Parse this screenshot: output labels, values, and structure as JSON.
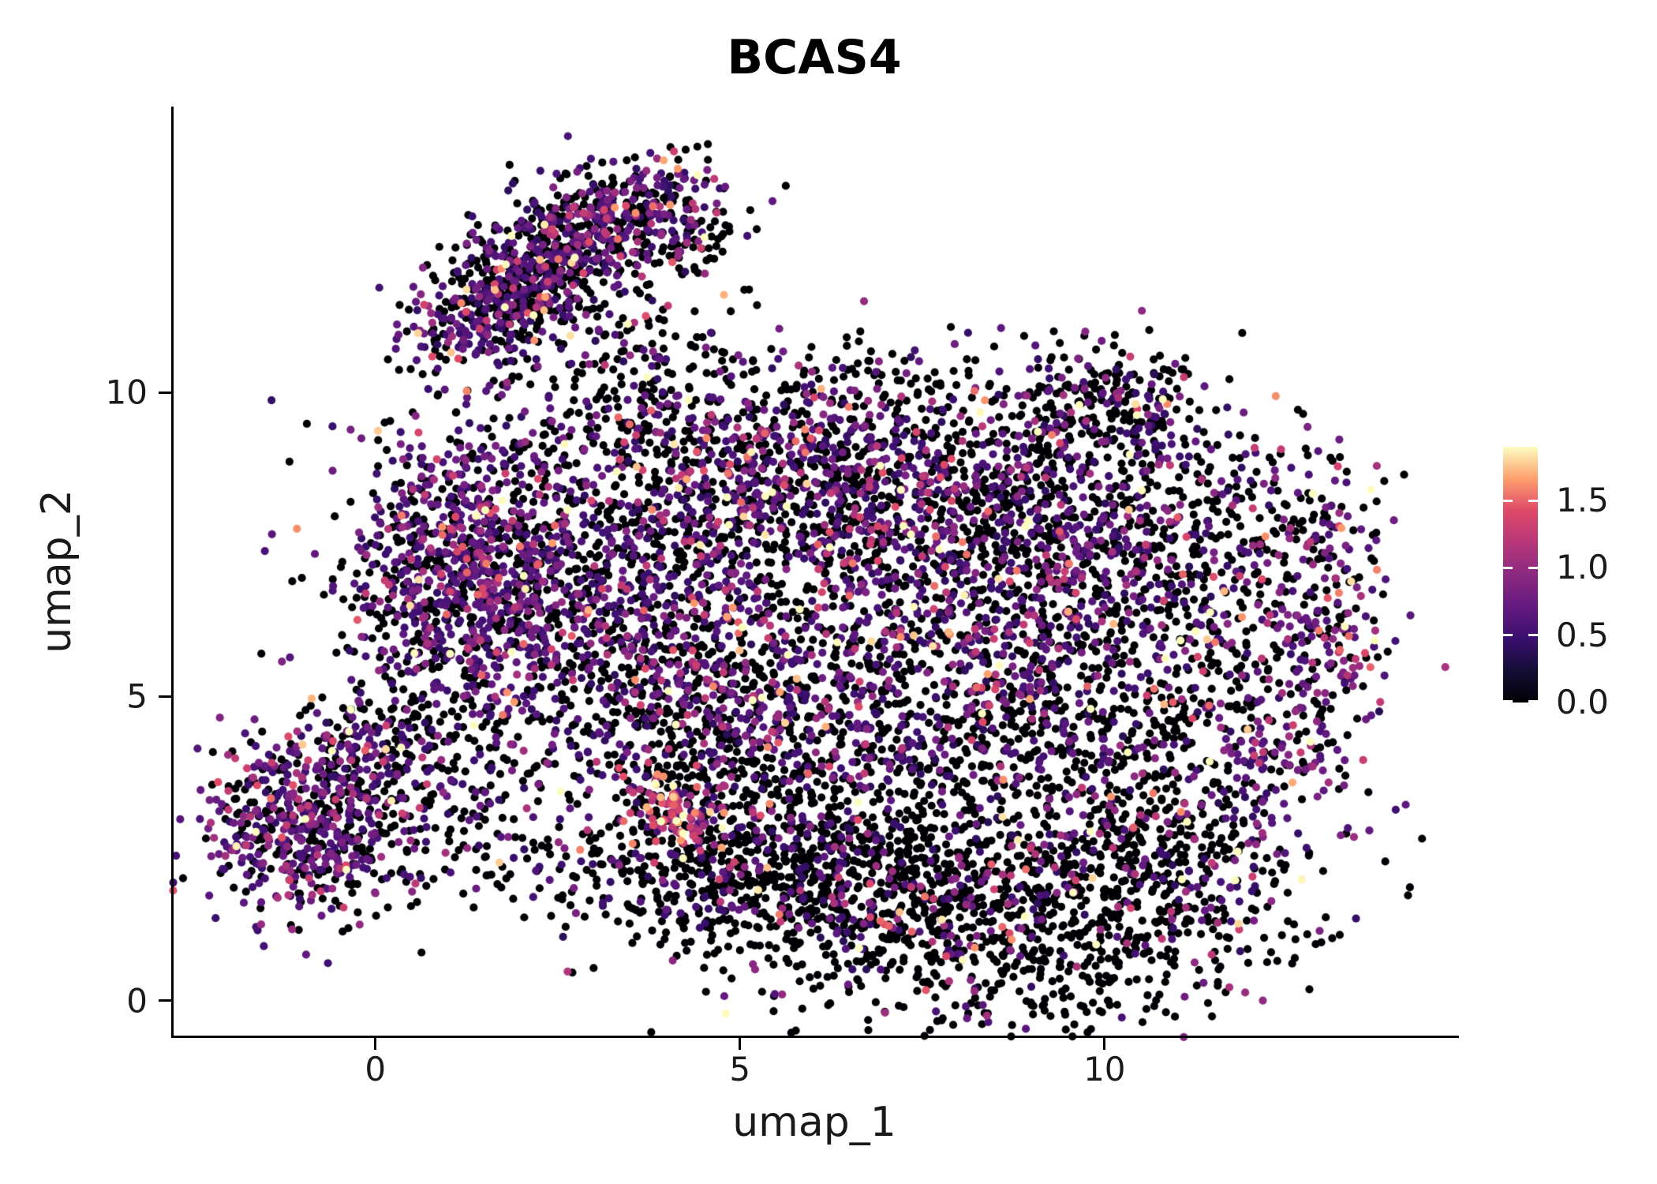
{
  "title": "BCAS4",
  "background": "#FFFFFF",
  "axis_color": "#000000",
  "text_color": "#1a1a1a",
  "chart_data": {
    "type": "scatter",
    "subtype": "umap-feature-plot",
    "title": "BCAS4",
    "xlabel": "umap_1",
    "ylabel": "umap_2",
    "xlim": [
      -2.8,
      14.85
    ],
    "ylim": [
      -0.6,
      14.7
    ],
    "grid": false,
    "x_ticks": [
      {
        "value": 0,
        "label": "0"
      },
      {
        "value": 5,
        "label": "5"
      },
      {
        "value": 10,
        "label": "10"
      }
    ],
    "y_ticks": [
      {
        "value": 0,
        "label": "0"
      },
      {
        "value": 5,
        "label": "5"
      },
      {
        "value": 10,
        "label": "10"
      }
    ],
    "legend": {
      "position": "right",
      "vmin": 0,
      "vmax": 1.9,
      "ticks": [
        {
          "value": 1.5,
          "label": "1.5"
        },
        {
          "value": 1.0,
          "label": "1.0"
        },
        {
          "value": 0.5,
          "label": "0.5"
        },
        {
          "value": 0.0,
          "label": "0.0"
        }
      ]
    },
    "colormap": {
      "name": "magma",
      "stops": [
        [
          0.0,
          "#000004"
        ],
        [
          0.125,
          "#140E36"
        ],
        [
          0.25,
          "#3B0F70"
        ],
        [
          0.375,
          "#641A80"
        ],
        [
          0.5,
          "#8C2981"
        ],
        [
          0.625,
          "#B73779"
        ],
        [
          0.75,
          "#DE4968"
        ],
        [
          0.875,
          "#FE9F6D"
        ],
        [
          1.0,
          "#FCFDBF"
        ]
      ]
    },
    "point_radius": 5.1,
    "seed": 20240611,
    "clusters": [
      {
        "name": "top-lobe-lower",
        "n": 300,
        "cx": 1.55,
        "cy": 11.25,
        "sx": 0.6,
        "sy": 0.45,
        "rot": 35,
        "p0": 0.38,
        "base": 0.4,
        "emean": 0.35
      },
      {
        "name": "top-lobe-upper",
        "n": 430,
        "cx": 3.0,
        "cy": 12.75,
        "sx": 0.8,
        "sy": 0.45,
        "rot": 20,
        "p0": 0.5,
        "base": 0.38,
        "emean": 0.38
      },
      {
        "name": "top-lobe-bridge",
        "n": 220,
        "cx": 2.25,
        "cy": 11.95,
        "sx": 0.5,
        "sy": 0.45,
        "rot": 30,
        "p0": 0.5,
        "base": 0.38,
        "emean": 0.35
      },
      {
        "name": "top-lobe-right-tail",
        "n": 130,
        "cx": 4.0,
        "cy": 12.5,
        "sx": 0.5,
        "sy": 0.55,
        "rot": 0,
        "p0": 0.72,
        "base": 0.35,
        "emean": 0.4
      },
      {
        "name": "neck-sparse",
        "n": 140,
        "cx": 3.6,
        "cy": 10.4,
        "sx": 0.8,
        "sy": 0.75,
        "rot": 0,
        "p0": 0.78,
        "base": 0.35,
        "emean": 0.4
      },
      {
        "name": "main-left-lobe",
        "n": 850,
        "cx": 1.15,
        "cy": 7.0,
        "sx": 0.8,
        "sy": 1.15,
        "rot": 0,
        "p0": 0.42,
        "base": 0.42,
        "emean": 0.33
      },
      {
        "name": "main-top-band",
        "n": 850,
        "cx": 5.3,
        "cy": 8.8,
        "sx": 2.0,
        "sy": 0.75,
        "rot": 0,
        "p0": 0.55,
        "base": 0.38,
        "emean": 0.38
      },
      {
        "name": "main-mid-left",
        "n": 800,
        "cx": 3.4,
        "cy": 6.6,
        "sx": 1.3,
        "sy": 1.15,
        "rot": 0,
        "p0": 0.5,
        "base": 0.4,
        "emean": 0.35
      },
      {
        "name": "main-mid-right",
        "n": 1150,
        "cx": 7.6,
        "cy": 7.6,
        "sx": 1.8,
        "sy": 1.2,
        "rot": 0,
        "p0": 0.52,
        "base": 0.38,
        "emean": 0.38
      },
      {
        "name": "main-right-lobe",
        "n": 620,
        "cx": 10.6,
        "cy": 7.4,
        "sx": 1.3,
        "sy": 1.25,
        "rot": 0,
        "p0": 0.62,
        "base": 0.36,
        "emean": 0.4
      },
      {
        "name": "right-edge-arc",
        "n": 240,
        "cx": 13.0,
        "cy": 6.4,
        "sx": 0.45,
        "sy": 1.35,
        "rot": 0,
        "p0": 0.42,
        "base": 0.5,
        "emean": 0.4
      },
      {
        "name": "main-bottom-band",
        "n": 560,
        "cx": 5.8,
        "cy": 5.2,
        "sx": 2.2,
        "sy": 0.75,
        "rot": 0,
        "p0": 0.55,
        "base": 0.38,
        "emean": 0.35
      },
      {
        "name": "main-southeast",
        "n": 460,
        "cx": 9.5,
        "cy": 4.8,
        "sx": 1.5,
        "sy": 0.9,
        "rot": 0,
        "p0": 0.66,
        "base": 0.36,
        "emean": 0.4
      },
      {
        "name": "main-top-bump",
        "n": 200,
        "cx": 9.9,
        "cy": 9.8,
        "sx": 0.75,
        "sy": 0.5,
        "rot": 0,
        "p0": 0.72,
        "base": 0.36,
        "emean": 0.4
      },
      {
        "name": "right-hole-sparse",
        "n": 50,
        "cx": 11.5,
        "cy": 5.8,
        "sx": 0.6,
        "sy": 0.7,
        "rot": 0,
        "p0": 0.7,
        "base": 0.4,
        "emean": 0.35
      },
      {
        "name": "lowleft-core",
        "n": 620,
        "cx": -0.9,
        "cy": 2.9,
        "sx": 0.78,
        "sy": 0.78,
        "rot": 0,
        "p0": 0.4,
        "base": 0.42,
        "emean": 0.35
      },
      {
        "name": "lowleft-top-tail",
        "n": 130,
        "cx": -0.05,
        "cy": 4.3,
        "sx": 0.5,
        "sy": 0.5,
        "rot": 0,
        "p0": 0.6,
        "base": 0.38,
        "emean": 0.35
      },
      {
        "name": "lowleft-bridge",
        "n": 140,
        "cx": 1.2,
        "cy": 3.2,
        "sx": 0.8,
        "sy": 0.75,
        "rot": 0,
        "p0": 0.72,
        "base": 0.38,
        "emean": 0.35
      },
      {
        "name": "hotspot-high-expr",
        "n": 80,
        "cx": 4.05,
        "cy": 3.15,
        "sx": 0.38,
        "sy": 0.3,
        "rot": 0,
        "p0": 0.08,
        "base": 1.0,
        "emean": 0.4
      },
      {
        "name": "mid-bridge",
        "n": 300,
        "cx": 4.4,
        "cy": 3.9,
        "sx": 1.05,
        "sy": 0.8,
        "rot": 0,
        "p0": 0.58,
        "base": 0.4,
        "emean": 0.38
      },
      {
        "name": "bottom-left",
        "n": 620,
        "cx": 6.3,
        "cy": 2.3,
        "sx": 1.35,
        "sy": 0.95,
        "rot": 0,
        "p0": 0.78,
        "base": 0.36,
        "emean": 0.42
      },
      {
        "name": "bottom-core",
        "n": 950,
        "cx": 8.8,
        "cy": 1.4,
        "sx": 1.7,
        "sy": 0.95,
        "rot": 0,
        "p0": 0.82,
        "base": 0.36,
        "emean": 0.42
      },
      {
        "name": "bottom-right-rise",
        "n": 360,
        "cx": 11.0,
        "cy": 2.6,
        "sx": 0.95,
        "sy": 0.95,
        "rot": 0,
        "p0": 0.72,
        "base": 0.38,
        "emean": 0.42
      },
      {
        "name": "bottom-left-band",
        "n": 280,
        "cx": 4.7,
        "cy": 2.1,
        "sx": 0.9,
        "sy": 0.6,
        "rot": 0,
        "p0": 0.75,
        "base": 0.36,
        "emean": 0.4
      },
      {
        "name": "gap-sparse",
        "n": 220,
        "cx": 7.0,
        "cy": 3.9,
        "sx": 2.0,
        "sy": 0.55,
        "rot": 0,
        "p0": 0.7,
        "base": 0.38,
        "emean": 0.4
      },
      {
        "name": "right-pink-patch",
        "n": 70,
        "cx": 12.3,
        "cy": 4.0,
        "sx": 0.45,
        "sy": 0.45,
        "rot": 0,
        "p0": 0.5,
        "base": 0.55,
        "emean": 0.4
      },
      {
        "name": "upper-sparse",
        "n": 90,
        "cx": 6.8,
        "cy": 10.1,
        "sx": 1.5,
        "sy": 0.4,
        "rot": 0,
        "p0": 0.72,
        "base": 0.36,
        "emean": 0.4
      },
      {
        "name": "lower-sparse",
        "n": 60,
        "cx": 2.6,
        "cy": 2.0,
        "sx": 0.85,
        "sy": 0.5,
        "rot": 0,
        "p0": 0.7,
        "base": 0.4,
        "emean": 0.35
      }
    ]
  }
}
